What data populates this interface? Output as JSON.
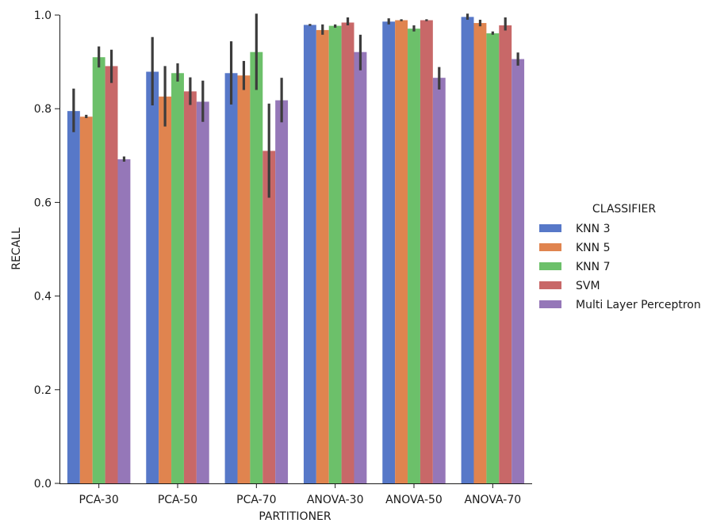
{
  "chart_data": {
    "type": "bar",
    "xlabel": "PARTITIONER",
    "ylabel": "RECALL",
    "ylim": [
      0,
      1.0
    ],
    "yticks": [
      "0.0",
      "0.2",
      "0.4",
      "0.6",
      "0.8",
      "1.0"
    ],
    "grid": false,
    "legend_title": "CLASSIFIER",
    "legend_position": "right",
    "categories": [
      "PCA-30",
      "PCA-50",
      "PCA-70",
      "ANOVA-30",
      "ANOVA-50",
      "ANOVA-70"
    ],
    "series": [
      {
        "name": "KNN 3",
        "color": "#5778c8",
        "values": [
          0.795,
          0.879,
          0.876,
          0.979,
          0.986,
          0.996
        ],
        "err_low": [
          0.75,
          0.807,
          0.809,
          0.977,
          0.98,
          0.99
        ],
        "err_high": [
          0.843,
          0.953,
          0.944,
          0.981,
          0.993,
          1.003
        ]
      },
      {
        "name": "KNN 5",
        "color": "#e0844f",
        "values": [
          0.783,
          0.826,
          0.871,
          0.968,
          0.989,
          0.983
        ],
        "err_low": [
          0.78,
          0.762,
          0.84,
          0.958,
          0.987,
          0.976
        ],
        "err_high": [
          0.787,
          0.891,
          0.902,
          0.98,
          0.991,
          0.99
        ]
      },
      {
        "name": "KNN 7",
        "color": "#6cc06a",
        "values": [
          0.91,
          0.876,
          0.921,
          0.977,
          0.971,
          0.961
        ],
        "err_low": [
          0.888,
          0.858,
          0.84,
          0.973,
          0.965,
          0.958
        ],
        "err_high": [
          0.933,
          0.897,
          1.003,
          0.98,
          0.978,
          0.965
        ]
      },
      {
        "name": "SVM",
        "color": "#c86868",
        "values": [
          0.891,
          0.837,
          0.71,
          0.984,
          0.989,
          0.978
        ],
        "err_low": [
          0.855,
          0.808,
          0.61,
          0.978,
          0.987,
          0.967
        ],
        "err_high": [
          0.926,
          0.867,
          0.811,
          0.995,
          0.991,
          0.995
        ]
      },
      {
        "name": "Multi Layer Perceptron",
        "color": "#9577b8",
        "values": [
          0.692,
          0.815,
          0.818,
          0.921,
          0.866,
          0.906
        ],
        "err_low": [
          0.687,
          0.772,
          0.771,
          0.882,
          0.841,
          0.892
        ],
        "err_high": [
          0.698,
          0.86,
          0.866,
          0.958,
          0.889,
          0.92
        ]
      }
    ]
  }
}
